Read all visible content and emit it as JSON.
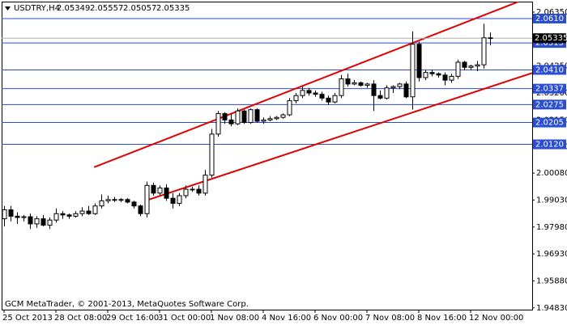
{
  "chart_data": {
    "type": "candlestick",
    "symbol": "USDTRY,H4",
    "annotation": "GCM MetaTrader, © 2001-2013, MetaQuotes Software Corp.",
    "categories": [
      "25 Oct 2013",
      null,
      null,
      null,
      null,
      null,
      null,
      null,
      "28 Oct 08:00",
      null,
      null,
      null,
      null,
      null,
      null,
      null,
      "29 Oct 16:00",
      null,
      null,
      null,
      null,
      null,
      null,
      null,
      "31 Oct 00:00",
      null,
      null,
      null,
      null,
      null,
      null,
      null,
      "1 Nov 08:00",
      null,
      null,
      null,
      null,
      null,
      null,
      null,
      "4 Nov 16:00",
      null,
      null,
      null,
      null,
      null,
      null,
      null,
      "6 Nov 00:00",
      null,
      null,
      null,
      null,
      null,
      null,
      null,
      "7 Nov 08:00",
      null,
      null,
      null,
      null,
      null,
      null,
      null,
      "8 Nov 16:00",
      null,
      null,
      null,
      null,
      null,
      null,
      null,
      "12 Nov 00:00",
      null,
      null,
      null
    ],
    "open": [
      1.983,
      1.9865,
      1.984,
      1.9835,
      1.9838,
      1.981,
      1.983,
      1.9805,
      1.9825,
      1.985,
      1.9845,
      1.984,
      1.985,
      1.986,
      1.985,
      1.988,
      1.99,
      1.9905,
      1.9902,
      1.9905,
      1.9895,
      1.988,
      1.985,
      1.996,
      1.993,
      1.995,
      1.991,
      1.989,
      1.992,
      1.9945,
      1.9945,
      1.993,
      2.0,
      2.016,
      2.024,
      2.0215,
      2.02,
      2.025,
      2.0205,
      2.0255,
      2.021,
      2.0215,
      2.022,
      2.0225,
      2.0235,
      2.029,
      2.031,
      2.033,
      2.032,
      2.0315,
      2.03,
      2.0285,
      2.031,
      2.0375,
      2.0355,
      2.036,
      2.035,
      2.0355,
      2.031,
      2.03,
      2.034,
      2.0345,
      2.0355,
      2.0305,
      2.051,
      2.038,
      2.04,
      2.0395,
      2.039,
      2.037,
      2.0385,
      2.044,
      2.042,
      2.0425,
      2.043,
      2.05349
    ],
    "high": [
      1.988,
      1.988,
      1.9855,
      1.9845,
      1.985,
      1.984,
      1.9845,
      1.9835,
      1.987,
      1.986,
      1.985,
      1.986,
      1.9875,
      1.988,
      1.989,
      1.9925,
      1.992,
      1.9915,
      1.991,
      1.991,
      1.99,
      1.9885,
      1.9975,
      1.997,
      1.996,
      1.9965,
      1.993,
      1.993,
      1.996,
      1.9955,
      1.996,
      2.002,
      2.018,
      2.025,
      2.0245,
      2.024,
      2.026,
      2.0255,
      2.026,
      2.026,
      2.0225,
      2.023,
      2.023,
      2.024,
      2.03,
      2.032,
      2.0345,
      2.034,
      2.033,
      2.0325,
      2.031,
      2.032,
      2.039,
      2.0395,
      2.037,
      2.0365,
      2.036,
      2.037,
      2.033,
      2.035,
      2.035,
      2.036,
      2.0365,
      2.056,
      2.052,
      2.041,
      2.041,
      2.04,
      2.04,
      2.0395,
      2.045,
      2.0445,
      2.043,
      2.0445,
      2.059,
      2.05557
    ],
    "low": [
      1.98,
      1.982,
      1.981,
      1.982,
      1.979,
      1.9795,
      1.98,
      1.979,
      1.9815,
      1.983,
      1.983,
      1.9835,
      1.984,
      1.9845,
      1.9845,
      1.987,
      1.989,
      1.9895,
      1.9895,
      1.989,
      1.987,
      1.984,
      1.9835,
      1.992,
      1.992,
      1.99,
      1.987,
      1.988,
      1.991,
      1.9935,
      1.992,
      1.992,
      1.999,
      2.015,
      2.02,
      2.019,
      2.0195,
      2.02,
      2.02,
      2.0205,
      2.02,
      2.021,
      2.0215,
      2.022,
      2.023,
      2.028,
      2.03,
      2.031,
      2.0305,
      2.029,
      2.0275,
      2.028,
      2.03,
      2.0345,
      2.035,
      2.0345,
      2.034,
      2.025,
      2.0295,
      2.0295,
      2.032,
      2.0335,
      2.03,
      2.0255,
      2.0365,
      2.037,
      2.0385,
      2.038,
      2.035,
      2.036,
      2.0375,
      2.041,
      2.041,
      2.0405,
      2.0415,
      2.05057
    ],
    "close": [
      1.9865,
      1.984,
      1.9835,
      1.9838,
      1.981,
      1.983,
      1.9805,
      1.9825,
      1.985,
      1.9845,
      1.984,
      1.985,
      1.986,
      1.985,
      1.988,
      1.99,
      1.9905,
      1.9902,
      1.9905,
      1.9895,
      1.988,
      1.985,
      1.996,
      1.993,
      1.995,
      1.991,
      1.989,
      1.992,
      1.9945,
      1.9945,
      1.993,
      2.0,
      2.016,
      2.024,
      2.0215,
      2.02,
      2.025,
      2.0205,
      2.0255,
      2.021,
      2.0215,
      2.022,
      2.0225,
      2.0235,
      2.029,
      2.031,
      2.033,
      2.032,
      2.0315,
      2.03,
      2.0285,
      2.031,
      2.0375,
      2.0355,
      2.036,
      2.035,
      2.0355,
      2.031,
      2.03,
      2.034,
      2.0345,
      2.0355,
      2.0305,
      2.051,
      2.038,
      2.04,
      2.0395,
      2.039,
      2.037,
      2.0385,
      2.044,
      2.042,
      2.0425,
      2.043,
      2.0535,
      2.05335
    ],
    "up_color": "#ffffff",
    "down_color": "#000000",
    "ylim": [
      1.9476,
      2.0676
    ],
    "yticks": [
      {
        "value": 2.0635,
        "label": "2.06350"
      },
      {
        "value": 2.053,
        "label": "2.05300"
      },
      {
        "value": 2.0425,
        "label": "2.04250"
      },
      {
        "value": 2.032,
        "label": "2.03200"
      },
      {
        "value": 2.0215,
        "label": "2.02150"
      },
      {
        "value": 2.011,
        "label": "2.01100"
      },
      {
        "value": 2.0008,
        "label": "2.00080"
      },
      {
        "value": 1.9903,
        "label": "1.99030"
      },
      {
        "value": 1.9798,
        "label": "1.97980"
      },
      {
        "value": 1.9693,
        "label": "1.96930"
      },
      {
        "value": 1.9588,
        "label": "1.95880"
      },
      {
        "value": 1.9483,
        "label": "1.94830"
      }
    ],
    "levels": {
      "color": "#2a4ecf",
      "values": [
        {
          "value": 2.061,
          "label": "2.0610"
        },
        {
          "value": 2.0515,
          "label": "2.0515"
        },
        {
          "value": 2.041,
          "label": "2.0410"
        },
        {
          "value": 2.0337,
          "label": "2.0337"
        },
        {
          "value": 2.0275,
          "label": "2.0275"
        },
        {
          "value": 2.0205,
          "label": "2.0205"
        },
        {
          "value": 2.012,
          "label": "2.0120"
        }
      ]
    },
    "trendlines": [
      {
        "color": "#e00000",
        "x": [
          13.9,
          79.4
        ],
        "values": [
          2.0031,
          2.0676
        ]
      },
      {
        "color": "#e00000",
        "x": [
          21.9,
          81.5
        ],
        "values": [
          1.9901,
          2.0398
        ]
      }
    ]
  }
}
